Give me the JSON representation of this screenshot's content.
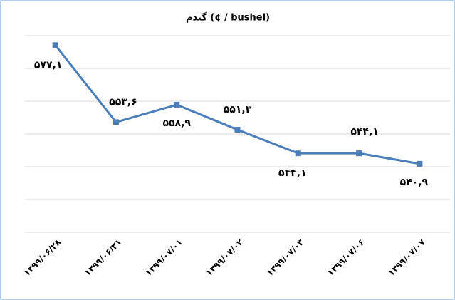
{
  "chart_data": {
    "type": "line",
    "title": "گندم (¢ / bushel)",
    "categories": [
      "۱۳۹۹/۰۶/۲۸",
      "۱۳۹۹/۰۶/۳۱",
      "۱۳۹۹/۰۷/۰۱",
      "۱۳۹۹/۰۷/۰۲",
      "۱۳۹۹/۰۷/۰۳",
      "۱۳۹۹/۰۷/۰۶",
      "۱۳۹۹/۰۷/۰۷"
    ],
    "values": [
      577.1,
      553.6,
      558.9,
      551.3,
      544.1,
      544.1,
      540.9
    ],
    "value_labels": [
      "۵۷۷,۱",
      "۵۵۳,۶",
      "۵۵۸,۹",
      "۵۵۱,۳",
      "۵۴۴,۱",
      "۵۴۴,۱",
      "۵۴۰,۹"
    ],
    "color": "#4a7ebb",
    "ylim": [
      520,
      580
    ],
    "yticks": [
      520,
      530,
      540,
      550,
      560,
      570,
      580
    ],
    "grid": true
  }
}
